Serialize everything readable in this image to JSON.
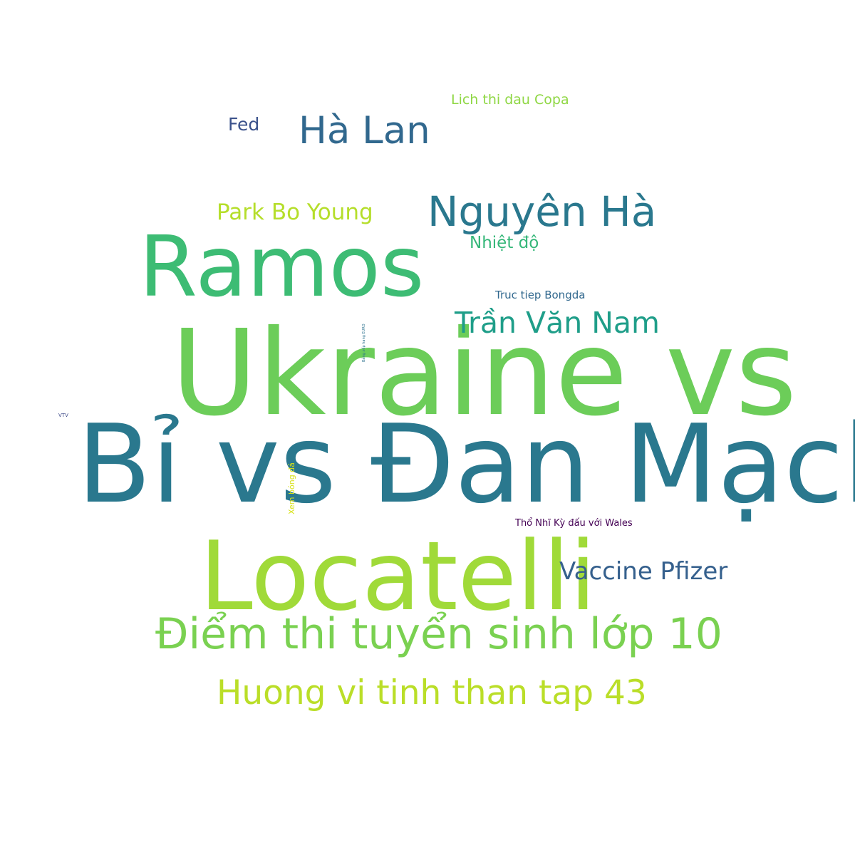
{
  "words": [
    {
      "text": "Ukraine vs",
      "color": "#6ccd59"
    },
    {
      "text": "Bỉ vs Đan Mạch",
      "color": "#2a788e"
    },
    {
      "text": "Locatelli",
      "color": "#a0da39"
    },
    {
      "text": "Ramos",
      "color": "#3dbc74"
    },
    {
      "text": "Điểm thi tuyển sinh lớp 10",
      "color": "#7ad151"
    },
    {
      "text": "Huong vi tinh than tap 43",
      "color": "#bade28"
    },
    {
      "text": "Nguyên Hà",
      "color": "#2a788e"
    },
    {
      "text": "Hà Lan",
      "color": "#31688e"
    },
    {
      "text": "Trần Văn Nam",
      "color": "#1f9e89"
    },
    {
      "text": "Vaccine Pfizer",
      "color": "#35608d"
    },
    {
      "text": "Park Bo Young",
      "color": "#b5de2b"
    },
    {
      "text": "Nhiệt độ",
      "color": "#35b779"
    },
    {
      "text": "Fed",
      "color": "#3b528b"
    },
    {
      "text": "Lich thi dau Copa",
      "color": "#8fd744"
    },
    {
      "text": "Truc tiep Bongda",
      "color": "#31688e"
    },
    {
      "text": "Thổ Nhĩ Kỳ đấu với Wales",
      "color": "#440154"
    },
    {
      "text": "VTV",
      "color": "#3e4a89"
    },
    {
      "text": "Xem bóng đá",
      "color": "#d8e219"
    },
    {
      "text": "Bảng xếp hạng EURO",
      "color": "#2c728e"
    }
  ]
}
